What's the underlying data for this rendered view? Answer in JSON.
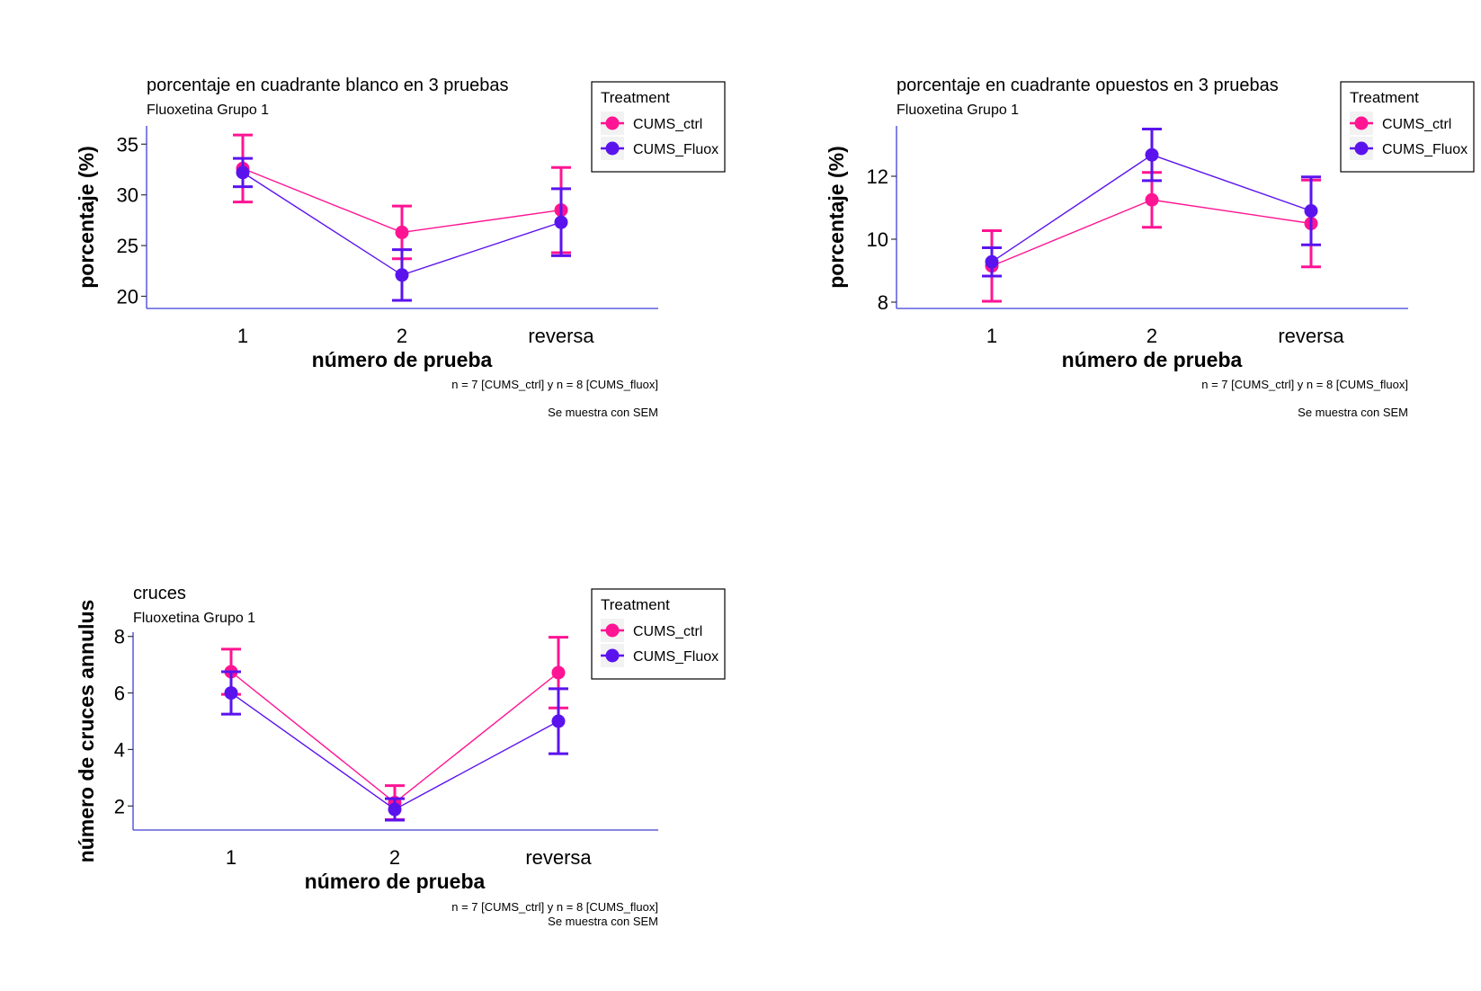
{
  "colors": {
    "ctrl": "#ff1493",
    "fluox": "#5b13ee",
    "axis": "#3f3fd8"
  },
  "legend": {
    "title": "Treatment",
    "entries": [
      "CUMS_ctrl",
      "CUMS_Fluox"
    ]
  },
  "chart_data": [
    {
      "type": "line",
      "title": "porcentaje en cuadrante blanco en 3 pruebas",
      "subtitle": "Fluoxetina Grupo 1",
      "xlabel": "número de prueba",
      "ylabel": "porcentaje (%)",
      "categories": [
        "1",
        "2",
        "reversa"
      ],
      "ylim": [
        18.8,
        36.8
      ],
      "yticks": [
        20,
        25,
        30,
        35
      ],
      "series": [
        {
          "name": "CUMS_ctrl",
          "values": [
            32.6,
            26.3,
            28.5
          ],
          "sem": [
            3.3,
            2.6,
            4.2
          ]
        },
        {
          "name": "CUMS_Fluox",
          "values": [
            32.2,
            22.1,
            27.3
          ],
          "sem": [
            1.4,
            2.5,
            3.3
          ]
        }
      ],
      "caption_lines": [
        "n = 7  [CUMS_ctrl] y n = 8 [CUMS_fluox]",
        "Se muestra con SEM"
      ],
      "legend_position": "top-right"
    },
    {
      "type": "line",
      "title": "porcentaje en cuadrante opuestos en 3 pruebas",
      "subtitle": "Fluoxetina Grupo 1",
      "xlabel": "número de prueba",
      "ylabel": "porcentaje (%)",
      "categories": [
        "1",
        "2",
        "reversa"
      ],
      "ylim": [
        7.8,
        13.6
      ],
      "yticks": [
        8,
        10,
        12
      ],
      "series": [
        {
          "name": "CUMS_ctrl",
          "values": [
            9.15,
            11.25,
            10.5
          ],
          "sem": [
            1.12,
            0.87,
            1.38
          ]
        },
        {
          "name": "CUMS_Fluox",
          "values": [
            9.28,
            12.68,
            10.9
          ],
          "sem": [
            0.45,
            0.82,
            1.08
          ]
        }
      ],
      "caption_lines": [
        "n = 7  [CUMS_ctrl] y n = 8 [CUMS_fluox]",
        "Se muestra con SEM"
      ],
      "legend_position": "top-right"
    },
    {
      "type": "line",
      "title": "cruces",
      "subtitle": "Fluoxetina Grupo 1",
      "xlabel": "número de prueba",
      "ylabel": "número de cruces annulus",
      "categories": [
        "1",
        "2",
        "reversa"
      ],
      "ylim": [
        1.15,
        8.15
      ],
      "yticks": [
        2,
        4,
        6,
        8
      ],
      "series": [
        {
          "name": "CUMS_ctrl",
          "values": [
            6.75,
            2.12,
            6.72
          ],
          "sem": [
            0.8,
            0.6,
            1.25
          ]
        },
        {
          "name": "CUMS_Fluox",
          "values": [
            6.0,
            1.88,
            5.0
          ],
          "sem": [
            0.75,
            0.38,
            1.15
          ]
        }
      ],
      "caption_lines": [
        "n = 7  [CUMS_ctrl] y n = 8 [CUMS_fluox]",
        "Se muestra con SEM"
      ],
      "legend_position": "top-right"
    }
  ]
}
